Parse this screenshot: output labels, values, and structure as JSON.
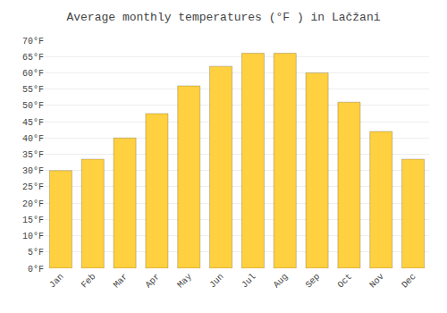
{
  "chart_data": {
    "type": "bar",
    "title": "Average monthly temperatures (°F ) in Lačžani",
    "categories": [
      "Jan",
      "Feb",
      "Mar",
      "Apr",
      "May",
      "Jun",
      "Jul",
      "Aug",
      "Sep",
      "Oct",
      "Nov",
      "Dec"
    ],
    "values": [
      30,
      33.5,
      40,
      47.5,
      56,
      62,
      66,
      66,
      60,
      51,
      42,
      33.5
    ],
    "color": "#FFD040",
    "ylim": [
      0,
      70
    ],
    "yticks": [
      {
        "value": 0,
        "label": "0°F"
      },
      {
        "value": 5,
        "label": "5°F"
      },
      {
        "value": 10,
        "label": "10°F"
      },
      {
        "value": 15,
        "label": "15°F"
      },
      {
        "value": 20,
        "label": "20°F"
      },
      {
        "value": 25,
        "label": "25°F"
      },
      {
        "value": 30,
        "label": "30°F"
      },
      {
        "value": 35,
        "label": "35°F"
      },
      {
        "value": 40,
        "label": "40°F"
      },
      {
        "value": 45,
        "label": "45°F"
      },
      {
        "value": 50,
        "label": "50°F"
      },
      {
        "value": 55,
        "label": "55°F"
      },
      {
        "value": 60,
        "label": "60°F"
      },
      {
        "value": 65,
        "label": "65°F"
      },
      {
        "value": 70,
        "label": "70°F"
      }
    ],
    "grid": true
  }
}
